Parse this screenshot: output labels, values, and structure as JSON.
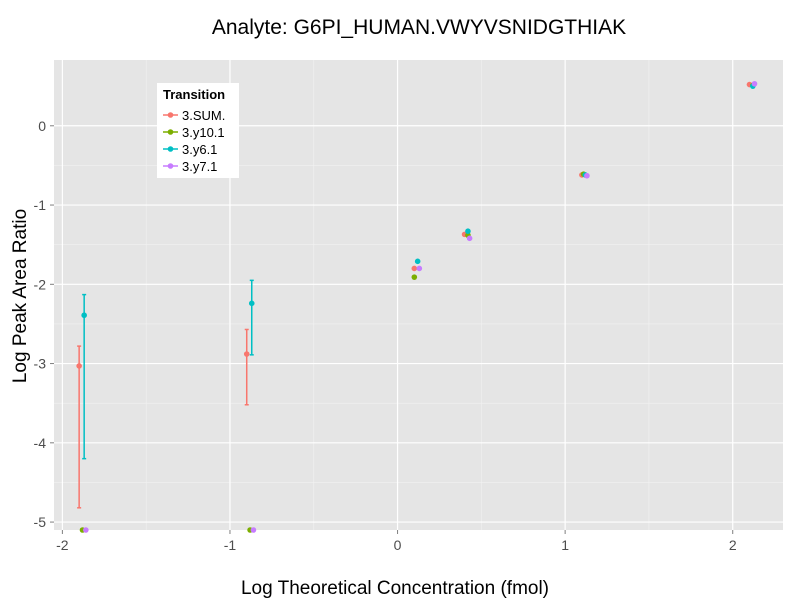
{
  "chart_data": {
    "type": "scatter",
    "title": "Analyte: G6PI_HUMAN.VWYVSNIDGTHIAK",
    "xlabel": "Log Theoretical Concentration (fmol)",
    "ylabel": "Log Peak Area Ratio",
    "xlim": [
      -2.05,
      2.3
    ],
    "ylim": [
      -5.1,
      0.83
    ],
    "x_ticks": [
      -2,
      -1,
      0,
      1,
      2
    ],
    "x_tick_labels": [
      "-2",
      "-1",
      "0",
      "1",
      "2"
    ],
    "y_ticks": [
      0,
      -1,
      -2,
      -3,
      -4,
      -5
    ],
    "y_tick_labels": [
      "0",
      "-1",
      "-2",
      "-3",
      "-4",
      "-5"
    ],
    "grid": true,
    "legend": {
      "title": "Transition",
      "placement": "top-left"
    },
    "series": [
      {
        "name": "3.SUM.",
        "color": "#F8766D",
        "points": [
          {
            "x": -1.9,
            "y": -3.03,
            "ymin": -4.82,
            "ymax": -2.78
          },
          {
            "x": -0.9,
            "y": -2.88,
            "ymin": -3.52,
            "ymax": -2.57
          },
          {
            "x": 0.1,
            "y": -1.8
          },
          {
            "x": 0.4,
            "y": -1.37
          },
          {
            "x": 1.1,
            "y": -0.62
          },
          {
            "x": 2.1,
            "y": 0.52
          }
        ]
      },
      {
        "name": "3.y10.1",
        "color": "#7CAE00",
        "points": [
          {
            "x": -1.88,
            "y": -5.1
          },
          {
            "x": -0.88,
            "y": -5.1
          },
          {
            "x": 0.1,
            "y": -1.91
          },
          {
            "x": 0.42,
            "y": -1.38
          },
          {
            "x": 1.11,
            "y": -0.61
          },
          {
            "x": 2.12,
            "y": 0.51
          }
        ]
      },
      {
        "name": "3.y6.1",
        "color": "#00BFC4",
        "points": [
          {
            "x": -1.87,
            "y": -2.39,
            "ymin": -4.2,
            "ymax": -2.13
          },
          {
            "x": -0.87,
            "y": -2.24,
            "ymin": -2.89,
            "ymax": -1.95
          },
          {
            "x": 0.12,
            "y": -1.71
          },
          {
            "x": 0.42,
            "y": -1.33
          },
          {
            "x": 1.12,
            "y": -0.62
          },
          {
            "x": 2.12,
            "y": 0.5
          }
        ]
      },
      {
        "name": "3.y7.1",
        "color": "#C77CFF",
        "points": [
          {
            "x": -1.86,
            "y": -5.1
          },
          {
            "x": -0.86,
            "y": -5.1
          },
          {
            "x": 0.13,
            "y": -1.8
          },
          {
            "x": 0.43,
            "y": -1.42
          },
          {
            "x": 1.13,
            "y": -0.63
          },
          {
            "x": 2.13,
            "y": 0.53
          }
        ]
      }
    ]
  }
}
